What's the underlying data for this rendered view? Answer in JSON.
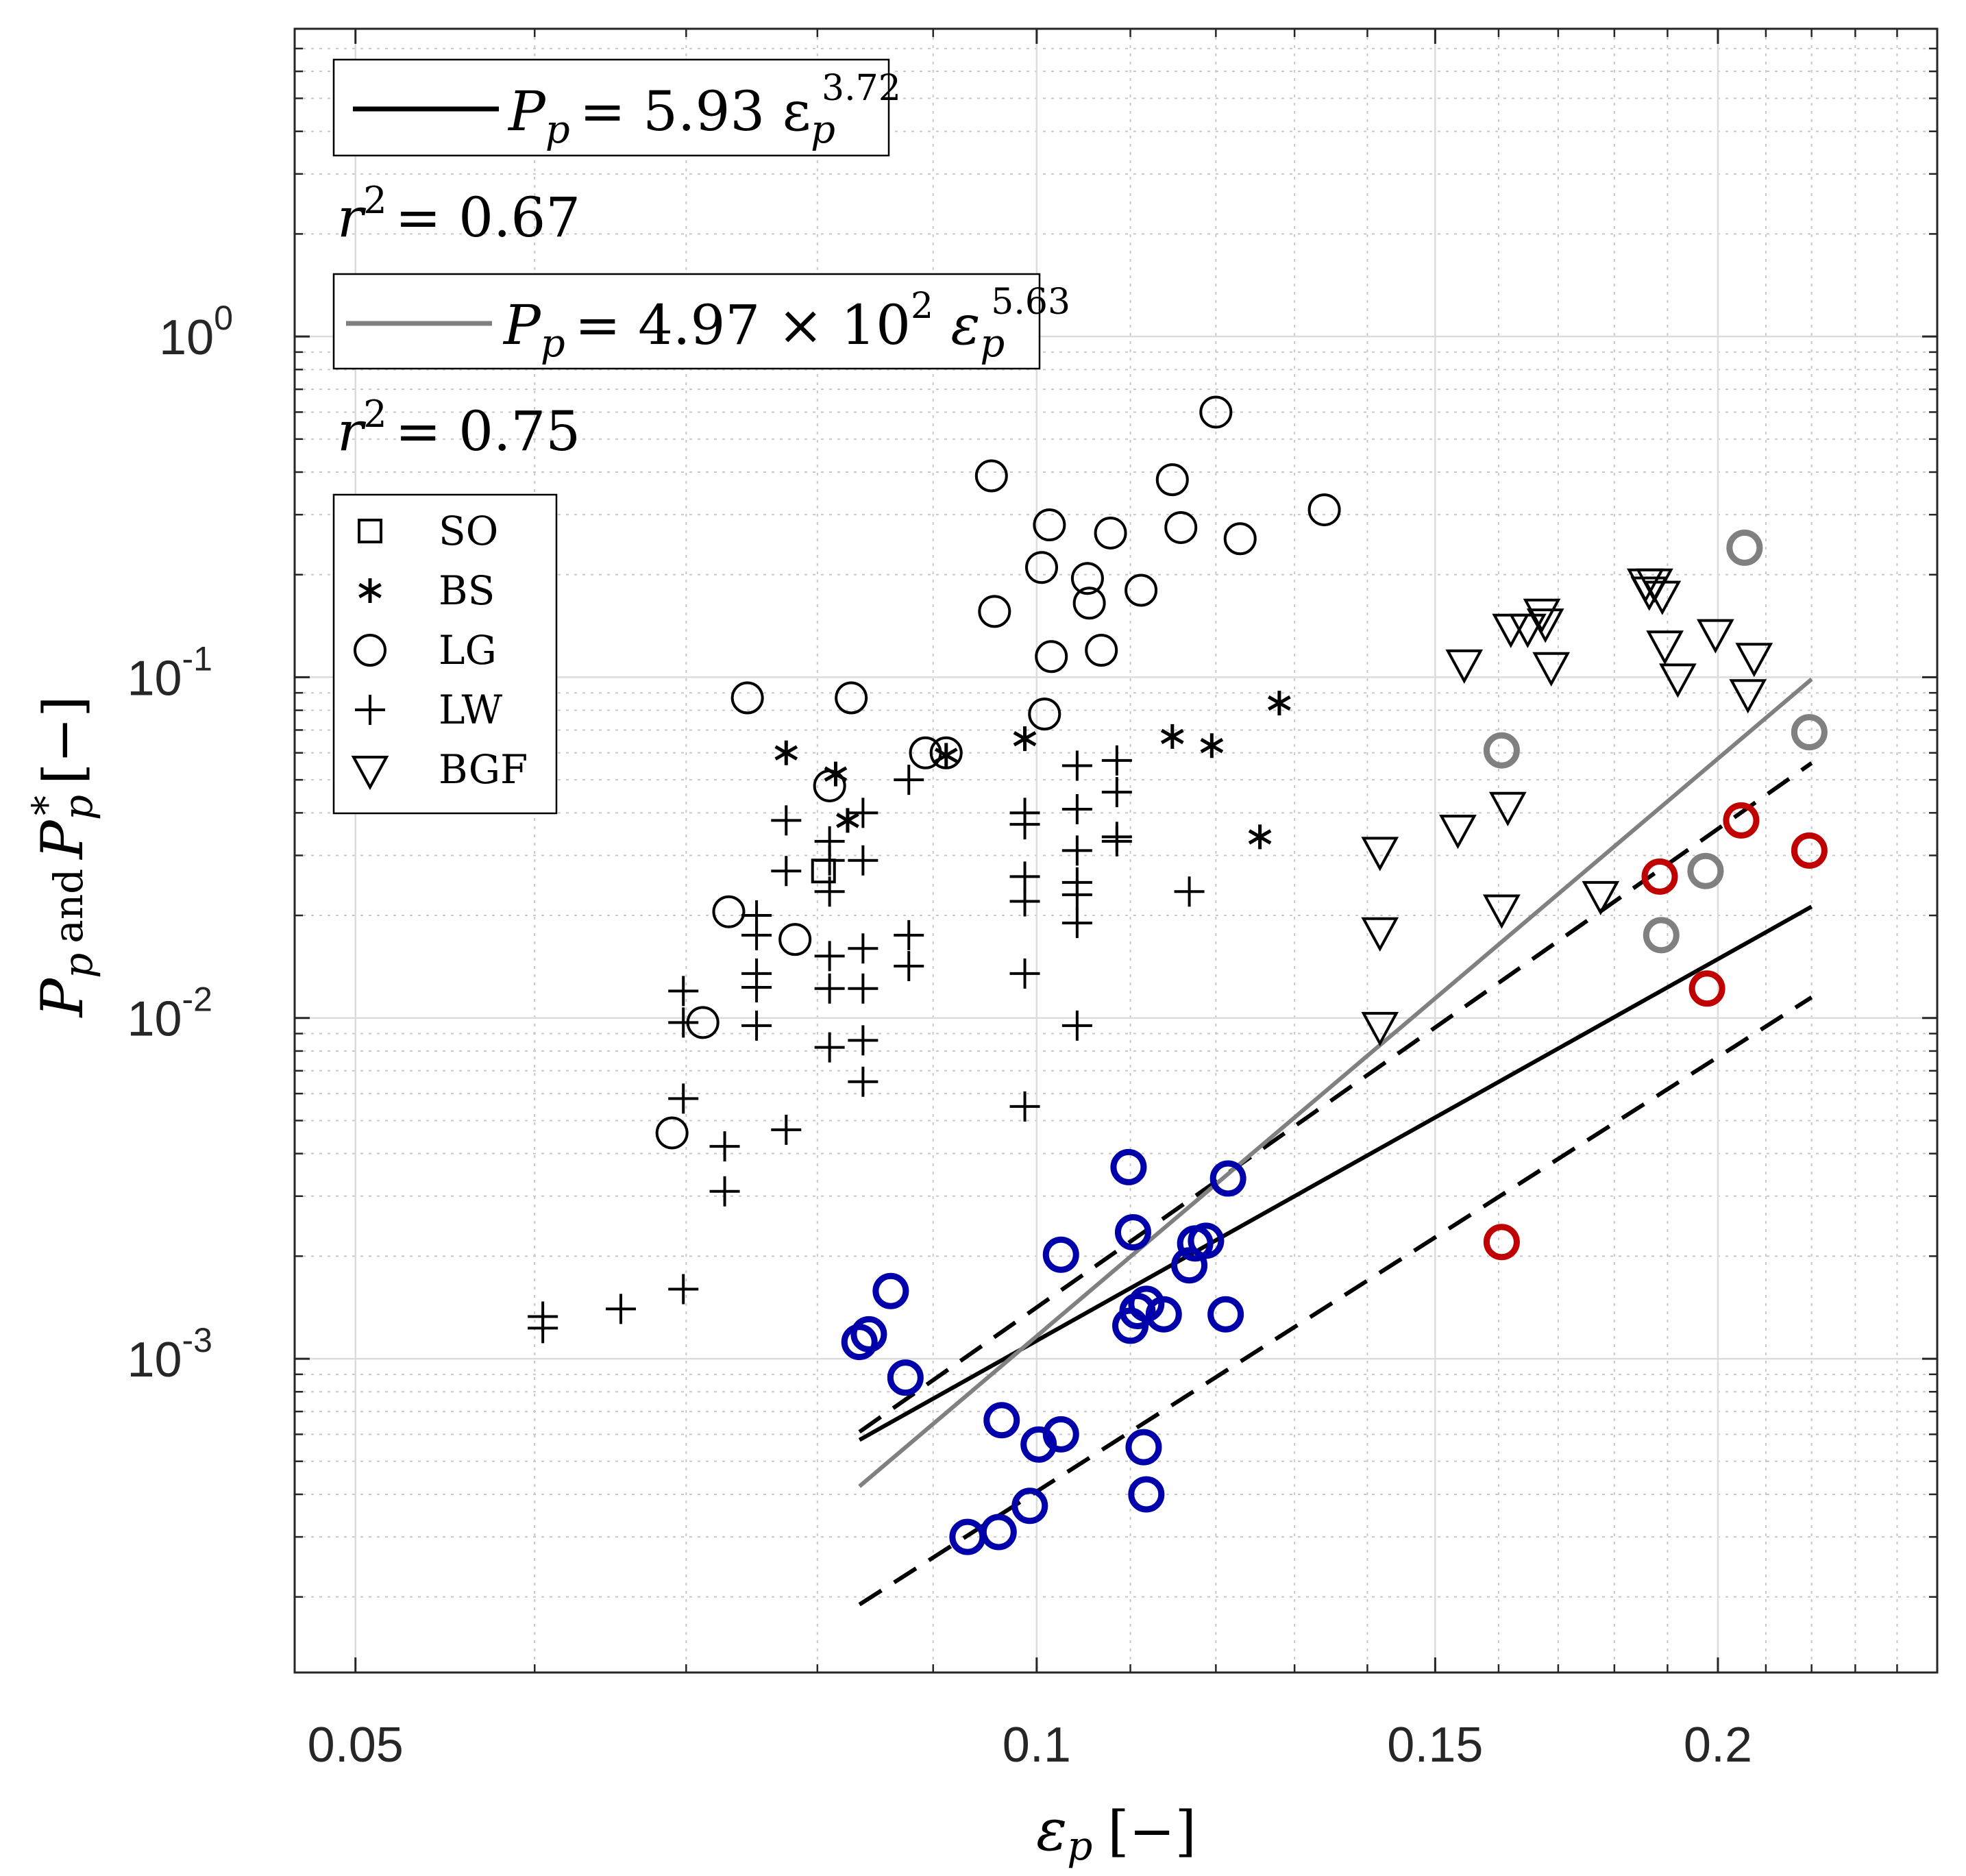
{
  "chart_data": {
    "type": "scatter",
    "x_scale": "log",
    "y_scale": "log",
    "xlim": [
      0.047,
      0.25
    ],
    "ylim": [
      0.00012,
      8.0
    ],
    "x_ticks": [
      {
        "value": 0.05,
        "label": "0.05"
      },
      {
        "value": 0.1,
        "label": "0.1"
      },
      {
        "value": 0.15,
        "label": "0.15"
      },
      {
        "value": 0.2,
        "label": "0.2"
      }
    ],
    "y_ticks": [
      {
        "value": 0.001,
        "base": "10",
        "exp": "-3"
      },
      {
        "value": 0.01,
        "base": "10",
        "exp": "-2"
      },
      {
        "value": 0.1,
        "base": "10",
        "exp": "-1"
      },
      {
        "value": 1,
        "base": "10",
        "exp": "0"
      }
    ],
    "xlabel": {
      "symbol": "ε",
      "sub": "p",
      "unit": "[−]"
    },
    "ylabel": {
      "p1": "P",
      "s1": "p",
      "mid": "and",
      "p2": "P",
      "s2": "p",
      "star": "*",
      "unit": "[−]"
    },
    "fit_black": {
      "name": "P_p = 5.93 ε_p^3.72",
      "lhs": "P",
      "sub": "p",
      "eq": "= 5.93 ε",
      "sub2": "p",
      "exp": "3.72",
      "coef": 5.93,
      "exponent": 3.72,
      "x_range": [
        0.0835,
        0.22
      ],
      "r2_label": "r",
      "r2_sup": "2",
      "r2_value": "= 0.67",
      "color": "#000000",
      "upper_bound": {
        "x": [
          0.0835,
          0.22
        ],
        "y": [
          0.00061,
          0.056
        ]
      },
      "lower_bound": {
        "x": [
          0.0835,
          0.22
        ],
        "y": [
          0.00019,
          0.0115
        ]
      }
    },
    "fit_gray": {
      "name": "P_p = 4.97 × 10^2 ε_p^5.63",
      "lhs": "P",
      "sub": "p",
      "eq": "= 4.97 × 10",
      "tensup": "2",
      "eps": " ε",
      "sub2": "p",
      "exp": "5.63",
      "coef": 497,
      "exponent": 5.63,
      "x_range": [
        0.0835,
        0.22
      ],
      "r2_label": "r",
      "r2_sup": "2",
      "r2_value": "= 0.75",
      "color": "#808080"
    },
    "legend": [
      {
        "marker": "square",
        "label": "SO"
      },
      {
        "marker": "asterisk",
        "label": "BS"
      },
      {
        "marker": "circle",
        "label": "LG"
      },
      {
        "marker": "plus",
        "label": "LW"
      },
      {
        "marker": "triangle-down",
        "label": "BGF"
      }
    ],
    "series": [
      {
        "name": "SO",
        "marker": "square",
        "color": "#000000",
        "points": [
          [
            0.0805,
            0.027
          ]
        ]
      },
      {
        "name": "BS",
        "marker": "asterisk",
        "color": "#000000",
        "points": [
          [
            0.0775,
            0.06
          ],
          [
            0.0815,
            0.052
          ],
          [
            0.0825,
            0.038
          ],
          [
            0.0912,
            0.059
          ],
          [
            0.0988,
            0.066
          ],
          [
            0.1148,
            0.067
          ],
          [
            0.1195,
            0.063
          ],
          [
            0.1255,
            0.034
          ],
          [
            0.128,
            0.084
          ]
        ]
      },
      {
        "name": "LG",
        "marker": "circle",
        "color": "#000000",
        "points": [
          [
            0.069,
            0.0046
          ],
          [
            0.0712,
            0.0097
          ],
          [
            0.0731,
            0.0205
          ],
          [
            0.0745,
            0.087
          ],
          [
            0.0782,
            0.017
          ],
          [
            0.081,
            0.048
          ],
          [
            0.0828,
            0.087
          ],
          [
            0.0893,
            0.06
          ],
          [
            0.0912,
            0.06
          ],
          [
            0.0955,
            0.39
          ],
          [
            0.0958,
            0.156
          ],
          [
            0.1005,
            0.21
          ],
          [
            0.1008,
            0.078
          ],
          [
            0.1013,
            0.28
          ],
          [
            0.1015,
            0.115
          ],
          [
            0.1053,
            0.195
          ],
          [
            0.1055,
            0.165
          ],
          [
            0.1068,
            0.12
          ],
          [
            0.1078,
            0.265
          ],
          [
            0.1112,
            0.18
          ],
          [
            0.1148,
            0.38
          ],
          [
            0.1158,
            0.275
          ],
          [
            0.12,
            0.6
          ],
          [
            0.123,
            0.255
          ],
          [
            0.134,
            0.31
          ]
        ]
      },
      {
        "name": "LW",
        "marker": "plus",
        "color": "#000000",
        "points": [
          [
            0.0605,
            0.00133
          ],
          [
            0.0605,
            0.00123
          ],
          [
            0.0655,
            0.0014
          ],
          [
            0.0698,
            0.0016
          ],
          [
            0.0698,
            0.0058
          ],
          [
            0.0698,
            0.0097
          ],
          [
            0.0698,
            0.012
          ],
          [
            0.0728,
            0.0031
          ],
          [
            0.0728,
            0.0042
          ],
          [
            0.0752,
            0.0095
          ],
          [
            0.0752,
            0.0123
          ],
          [
            0.0752,
            0.0135
          ],
          [
            0.0752,
            0.0175
          ],
          [
            0.0752,
            0.02
          ],
          [
            0.0775,
            0.0047
          ],
          [
            0.0775,
            0.027
          ],
          [
            0.0775,
            0.038
          ],
          [
            0.081,
            0.0082
          ],
          [
            0.081,
            0.0122
          ],
          [
            0.081,
            0.0152
          ],
          [
            0.081,
            0.0235
          ],
          [
            0.081,
            0.029
          ],
          [
            0.081,
            0.033
          ],
          [
            0.0838,
            0.0065
          ],
          [
            0.0838,
            0.0086
          ],
          [
            0.0838,
            0.0122
          ],
          [
            0.0838,
            0.016
          ],
          [
            0.0838,
            0.029
          ],
          [
            0.0838,
            0.04
          ],
          [
            0.0878,
            0.0142
          ],
          [
            0.0878,
            0.0175
          ],
          [
            0.0878,
            0.05
          ],
          [
            0.0988,
            0.0055
          ],
          [
            0.0988,
            0.0135
          ],
          [
            0.0988,
            0.022
          ],
          [
            0.0988,
            0.026
          ],
          [
            0.0988,
            0.037
          ],
          [
            0.0988,
            0.04
          ],
          [
            0.1042,
            0.0095
          ],
          [
            0.1042,
            0.019
          ],
          [
            0.1042,
            0.023
          ],
          [
            0.1042,
            0.025
          ],
          [
            0.1042,
            0.031
          ],
          [
            0.1042,
            0.041
          ],
          [
            0.1042,
            0.055
          ],
          [
            0.1085,
            0.033
          ],
          [
            0.1085,
            0.034
          ],
          [
            0.1085,
            0.046
          ],
          [
            0.1085,
            0.057
          ],
          [
            0.1168,
            0.0235
          ]
        ]
      },
      {
        "name": "BGF",
        "marker": "triangle-down",
        "color": "#000000",
        "points": [
          [
            0.1418,
            0.0095
          ],
          [
            0.1418,
            0.018
          ],
          [
            0.1418,
            0.031
          ],
          [
            0.1535,
            0.036
          ],
          [
            0.1545,
            0.11
          ],
          [
            0.1605,
            0.021
          ],
          [
            0.1615,
            0.042
          ],
          [
            0.162,
            0.14
          ],
          [
            0.1648,
            0.14
          ],
          [
            0.1672,
            0.155
          ],
          [
            0.1678,
            0.145
          ],
          [
            0.1688,
            0.108
          ],
          [
            0.1775,
            0.023
          ],
          [
            0.1858,
            0.19
          ],
          [
            0.1865,
            0.18
          ],
          [
            0.1875,
            0.19
          ],
          [
            0.189,
            0.175
          ],
          [
            0.1895,
            0.125
          ],
          [
            0.192,
            0.1
          ],
          [
            0.1995,
            0.135
          ],
          [
            0.2062,
            0.09
          ],
          [
            0.2075,
            0.115
          ]
        ]
      },
      {
        "name": "Blue group",
        "marker": "circle-thick",
        "color": "#0000aa",
        "points": [
          [
            0.0835,
            0.00112
          ],
          [
            0.0843,
            0.00118
          ],
          [
            0.0862,
            0.00158
          ],
          [
            0.0875,
            0.00088
          ],
          [
            0.0932,
            0.0003
          ],
          [
            0.0962,
            0.00031
          ],
          [
            0.0965,
            0.00066
          ],
          [
            0.0993,
            0.00037
          ],
          [
            0.1002,
            0.00056
          ],
          [
            0.1025,
            0.00202
          ],
          [
            0.1025,
            0.0006
          ],
          [
            0.1098,
            0.00365
          ],
          [
            0.11,
            0.00125
          ],
          [
            0.1103,
            0.00235
          ],
          [
            0.1108,
            0.00138
          ],
          [
            0.1115,
            0.00055
          ],
          [
            0.1118,
            0.0004
          ],
          [
            0.1118,
            0.00145
          ],
          [
            0.1138,
            0.00135
          ],
          [
            0.1168,
            0.00188
          ],
          [
            0.1175,
            0.00218
          ],
          [
            0.1188,
            0.00222
          ],
          [
            0.1212,
            0.00135
          ],
          [
            0.1215,
            0.00338
          ]
        ]
      },
      {
        "name": "Red group",
        "marker": "circle-thick",
        "color": "#c00000",
        "points": [
          [
            0.1605,
            0.0022
          ],
          [
            0.1885,
            0.026
          ],
          [
            0.1978,
            0.0122
          ],
          [
            0.2048,
            0.038
          ],
          [
            0.2195,
            0.031
          ]
        ]
      },
      {
        "name": "Gray group",
        "marker": "circle-thick",
        "color": "#808080",
        "points": [
          [
            0.1605,
            0.061
          ],
          [
            0.1888,
            0.0175
          ],
          [
            0.1975,
            0.027
          ],
          [
            0.2055,
            0.24
          ],
          [
            0.2195,
            0.069
          ]
        ]
      }
    ]
  }
}
